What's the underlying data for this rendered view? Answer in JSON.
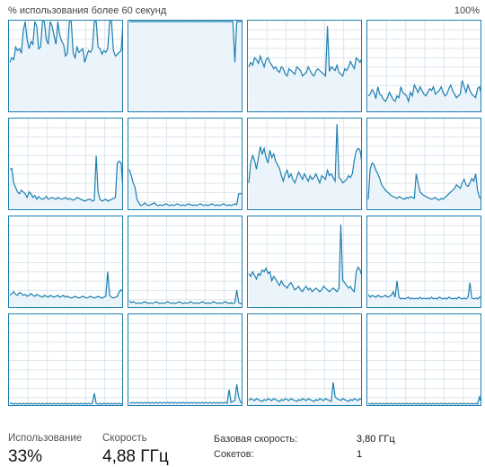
{
  "header": {
    "left_label": "% использования более 60 секунд",
    "right_label": "100%"
  },
  "stats": {
    "usage_label": "Использование",
    "usage_value": "33%",
    "speed_label": "Скорость",
    "speed_value": "4,88 ГГц"
  },
  "details": {
    "base_speed_label": "Базовая скорость:",
    "base_speed_value": "3,80 ГГц",
    "sockets_label": "Сокетов:",
    "sockets_value": "1"
  },
  "colors": {
    "line": "#1d7fb0",
    "fill": "#e9f3fa",
    "grid": "#dbe6ee"
  },
  "cores": [
    {
      "values": [
        55,
        60,
        58,
        72,
        68,
        70,
        65,
        90,
        100,
        80,
        70,
        78,
        75,
        100,
        95,
        70,
        72,
        100,
        100,
        80,
        75,
        100,
        95,
        85,
        75,
        100,
        85,
        78,
        75,
        62,
        65,
        100,
        100,
        65,
        60,
        72,
        66,
        68,
        70,
        55,
        62,
        68,
        66,
        70,
        100,
        100,
        72,
        70,
        64,
        68,
        66,
        70,
        100,
        100,
        68,
        62,
        64,
        66,
        68,
        100
      ]
    },
    {
      "values": [
        100,
        100,
        100,
        100,
        100,
        100,
        100,
        100,
        100,
        100,
        100,
        100,
        100,
        100,
        100,
        100,
        100,
        100,
        100,
        100,
        100,
        100,
        100,
        100,
        100,
        100,
        100,
        100,
        100,
        100,
        100,
        100,
        100,
        100,
        100,
        100,
        100,
        100,
        100,
        100,
        100,
        100,
        100,
        100,
        100,
        100,
        100,
        100,
        100,
        100,
        100,
        100,
        100,
        100,
        100,
        55,
        100,
        100,
        100,
        100
      ]
    },
    {
      "values": [
        50,
        55,
        52,
        60,
        58,
        54,
        62,
        56,
        50,
        58,
        60,
        55,
        52,
        48,
        50,
        46,
        44,
        50,
        48,
        42,
        40,
        48,
        46,
        44,
        42,
        50,
        48,
        46,
        40,
        42,
        44,
        50,
        46,
        42,
        40,
        45,
        48,
        46,
        44,
        42,
        40,
        95,
        45,
        50,
        48,
        46,
        52,
        44,
        42,
        40,
        48,
        46,
        50,
        56,
        52,
        48,
        60,
        58,
        55,
        60
      ]
    },
    {
      "values": [
        18,
        20,
        25,
        22,
        15,
        28,
        20,
        18,
        14,
        12,
        16,
        22,
        18,
        14,
        12,
        18,
        16,
        28,
        22,
        20,
        18,
        12,
        22,
        18,
        30,
        26,
        22,
        28,
        24,
        20,
        18,
        22,
        26,
        24,
        28,
        20,
        22,
        24,
        28,
        22,
        18,
        20,
        26,
        30,
        24,
        20,
        16,
        18,
        20,
        35,
        28,
        22,
        30,
        24,
        20,
        18,
        16,
        26,
        28,
        20
      ]
    },
    {
      "values": [
        45,
        46,
        30,
        25,
        20,
        18,
        22,
        20,
        18,
        14,
        20,
        18,
        14,
        16,
        12,
        15,
        13,
        12,
        13,
        15,
        12,
        13,
        14,
        13,
        12,
        14,
        13,
        12,
        13,
        14,
        12,
        13,
        12,
        11,
        12,
        14,
        13,
        12,
        11,
        10,
        11,
        12,
        12,
        10,
        11,
        60,
        20,
        12,
        10,
        11,
        12,
        10,
        11,
        12,
        13,
        14,
        52,
        54,
        52,
        22
      ]
    },
    {
      "values": [
        45,
        38,
        30,
        25,
        12,
        8,
        5,
        6,
        8,
        6,
        5,
        6,
        7,
        8,
        6,
        5,
        6,
        5,
        6,
        7,
        6,
        5,
        6,
        5,
        6,
        7,
        6,
        5,
        6,
        5,
        6,
        7,
        6,
        5,
        6,
        5,
        6,
        7,
        6,
        5,
        6,
        5,
        6,
        7,
        6,
        5,
        6,
        5,
        6,
        7,
        6,
        5,
        6,
        5,
        6,
        7,
        6,
        18,
        18,
        18
      ]
    },
    {
      "values": [
        30,
        52,
        60,
        55,
        45,
        58,
        70,
        62,
        68,
        58,
        52,
        66,
        58,
        62,
        54,
        50,
        46,
        38,
        32,
        40,
        44,
        36,
        40,
        34,
        30,
        36,
        42,
        38,
        34,
        40,
        36,
        32,
        38,
        34,
        36,
        40,
        35,
        30,
        38,
        36,
        34,
        44,
        38,
        40,
        36,
        32,
        95,
        36,
        34,
        30,
        32,
        34,
        38,
        36,
        40,
        55,
        65,
        68,
        66,
        52
      ]
    },
    {
      "values": [
        12,
        45,
        52,
        50,
        44,
        40,
        35,
        28,
        25,
        22,
        20,
        18,
        16,
        15,
        14,
        13,
        15,
        14,
        13,
        12,
        14,
        13,
        15,
        14,
        13,
        40,
        30,
        20,
        18,
        16,
        15,
        14,
        13,
        12,
        13,
        14,
        12,
        11,
        13,
        12,
        14,
        16,
        18,
        20,
        22,
        24,
        28,
        26,
        24,
        30,
        34,
        28,
        26,
        30,
        35,
        32,
        40,
        22,
        14,
        12
      ]
    },
    {
      "values": [
        14,
        16,
        18,
        15,
        14,
        17,
        16,
        14,
        15,
        13,
        14,
        16,
        14,
        13,
        15,
        14,
        13,
        12,
        14,
        13,
        12,
        14,
        13,
        12,
        13,
        14,
        12,
        13,
        14,
        12,
        13,
        12,
        11,
        12,
        13,
        12,
        11,
        12,
        13,
        12,
        11,
        12,
        13,
        12,
        11,
        12,
        13,
        12,
        11,
        12,
        13,
        40,
        14,
        12,
        11,
        12,
        13,
        18,
        20,
        18
      ]
    },
    {
      "values": [
        8,
        6,
        7,
        6,
        5,
        6,
        5,
        6,
        7,
        6,
        5,
        6,
        5,
        6,
        7,
        6,
        5,
        6,
        5,
        6,
        7,
        6,
        5,
        6,
        5,
        6,
        7,
        6,
        5,
        6,
        5,
        6,
        7,
        6,
        5,
        6,
        5,
        6,
        7,
        6,
        5,
        6,
        5,
        6,
        7,
        6,
        5,
        6,
        5,
        6,
        7,
        6,
        5,
        6,
        5,
        6,
        20,
        6,
        5,
        6
      ]
    },
    {
      "values": [
        38,
        35,
        40,
        36,
        32,
        38,
        36,
        42,
        40,
        44,
        38,
        40,
        30,
        35,
        32,
        28,
        25,
        30,
        26,
        24,
        22,
        26,
        28,
        24,
        20,
        22,
        24,
        20,
        18,
        22,
        24,
        20,
        22,
        18,
        20,
        22,
        20,
        18,
        20,
        24,
        22,
        20,
        18,
        20,
        22,
        20,
        18,
        22,
        92,
        30,
        28,
        25,
        22,
        24,
        20,
        18,
        40,
        45,
        42,
        35
      ]
    },
    {
      "values": [
        15,
        12,
        14,
        13,
        12,
        14,
        13,
        12,
        13,
        14,
        12,
        13,
        14,
        18,
        12,
        30,
        12,
        10,
        11,
        10,
        11,
        12,
        10,
        11,
        10,
        11,
        10,
        12,
        10,
        11,
        10,
        11,
        10,
        12,
        10,
        11,
        10,
        12,
        11,
        10,
        11,
        10,
        12,
        11,
        10,
        11,
        10,
        12,
        11,
        10,
        11,
        10,
        12,
        28,
        11,
        10,
        11,
        10,
        12,
        11
      ]
    },
    {
      "values": [
        3,
        3,
        2,
        3,
        2,
        3,
        2,
        3,
        2,
        3,
        2,
        3,
        2,
        3,
        2,
        3,
        2,
        3,
        2,
        3,
        2,
        3,
        2,
        3,
        2,
        3,
        2,
        3,
        2,
        3,
        2,
        3,
        2,
        3,
        2,
        3,
        2,
        3,
        2,
        3,
        2,
        3,
        2,
        3,
        14,
        3,
        2,
        3,
        2,
        3,
        2,
        3,
        2,
        3,
        2,
        3,
        2,
        3,
        2,
        3
      ]
    },
    {
      "values": [
        4,
        3,
        4,
        3,
        4,
        3,
        4,
        3,
        4,
        3,
        4,
        3,
        4,
        3,
        4,
        3,
        4,
        3,
        4,
        3,
        4,
        3,
        4,
        3,
        4,
        3,
        4,
        3,
        4,
        3,
        4,
        3,
        4,
        3,
        4,
        3,
        4,
        3,
        4,
        3,
        4,
        3,
        4,
        3,
        4,
        3,
        4,
        3,
        4,
        3,
        4,
        3,
        18,
        4,
        5,
        6,
        24,
        10,
        4,
        3
      ]
    },
    {
      "values": [
        6,
        8,
        7,
        6,
        8,
        7,
        6,
        5,
        7,
        6,
        8,
        7,
        6,
        8,
        7,
        6,
        5,
        7,
        6,
        8,
        7,
        6,
        8,
        7,
        6,
        5,
        7,
        6,
        8,
        7,
        6,
        8,
        7,
        6,
        5,
        7,
        6,
        8,
        7,
        6,
        8,
        7,
        6,
        5,
        26,
        10,
        8,
        7,
        6,
        8,
        7,
        6,
        5,
        7,
        6,
        8,
        7,
        6,
        8,
        7
      ]
    },
    {
      "values": [
        3,
        2,
        3,
        2,
        3,
        2,
        3,
        2,
        3,
        2,
        3,
        2,
        3,
        2,
        3,
        2,
        3,
        2,
        3,
        2,
        3,
        2,
        3,
        2,
        3,
        2,
        3,
        2,
        3,
        2,
        3,
        2,
        3,
        2,
        3,
        2,
        3,
        2,
        3,
        2,
        3,
        2,
        3,
        2,
        3,
        2,
        3,
        2,
        3,
        2,
        3,
        2,
        3,
        2,
        3,
        2,
        3,
        2,
        10,
        3
      ]
    }
  ]
}
